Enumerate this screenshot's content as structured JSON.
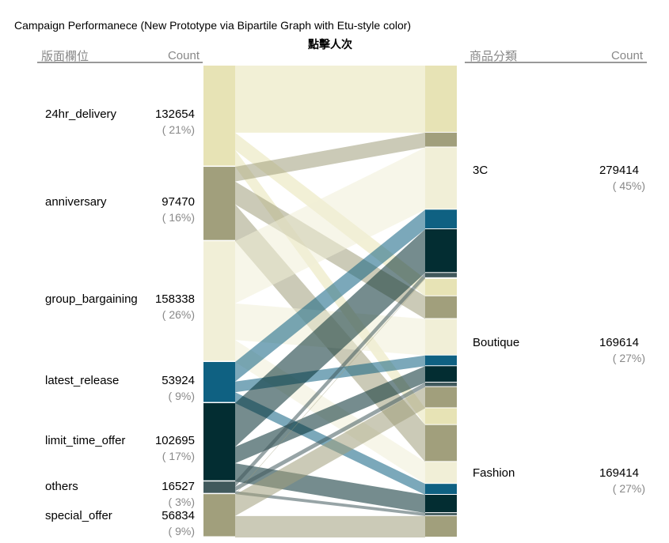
{
  "chart_data": {
    "type": "bipartite",
    "title": "Campaign Performanece (New Prototype via Bipartile Graph with Etu-style color)",
    "subtitle": "點擊人次",
    "left_header": {
      "label": "版面欄位",
      "count_label": "Count"
    },
    "right_header": {
      "label": "商品分類",
      "count_label": "Count"
    },
    "left": [
      {
        "name": "24hr_delivery",
        "count": "132654",
        "pct": "( 21%)",
        "value": 132654,
        "color": "#e7e3b5"
      },
      {
        "name": "anniversary",
        "count": "97470",
        "pct": "( 16%)",
        "value": 97470,
        "color": "#a19f7c"
      },
      {
        "name": "group_bargaining",
        "count": "158338",
        "pct": "( 26%)",
        "value": 158338,
        "color": "#f1efd7"
      },
      {
        "name": "latest_release",
        "count": "53924",
        "pct": "( 9%)",
        "value": 53924,
        "color": "#0f6182"
      },
      {
        "name": "limit_time_offer",
        "count": "102695",
        "pct": "( 17%)",
        "value": 102695,
        "color": "#032d32"
      },
      {
        "name": "others",
        "count": "16527",
        "pct": "( 3%)",
        "value": 16527,
        "color": "#41595c"
      },
      {
        "name": "special_offer",
        "count": "56834",
        "pct": "( 9%)",
        "value": 56834,
        "color": "#a19f7c"
      }
    ],
    "right": [
      {
        "name": "3C",
        "count": "279414",
        "pct": "( 45%)",
        "value": 279414
      },
      {
        "name": "Boutique",
        "count": "169614",
        "pct": "( 27%)",
        "value": 169614
      },
      {
        "name": "Fashion",
        "count": "169414",
        "pct": "( 27%)",
        "value": 169414
      }
    ],
    "flows": [
      [
        87900,
        22800,
        21954
      ],
      [
        19300,
        29800,
        48370
      ],
      [
        81600,
        47900,
        28838
      ],
      [
        25600,
        14000,
        14324
      ],
      [
        57300,
        21500,
        23895
      ],
      [
        6800,
        5800,
        3927
      ],
      [
        914,
        27814,
        28106
      ]
    ]
  }
}
